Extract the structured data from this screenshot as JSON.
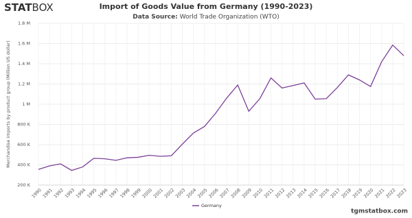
{
  "logo": {
    "bold": "STAT",
    "light": "BOX"
  },
  "footer": "tgmstatbox.com",
  "chart_data": {
    "type": "line",
    "title": "Import of Goods Value from Germany (1990-2023)",
    "subtitle_label": "Data Source:",
    "subtitle": "World Trade Organization (WTO)",
    "y_label": "Merchandise imports by product group (Million US dollar)",
    "x": [
      1990,
      1991,
      1992,
      1993,
      1994,
      1995,
      1996,
      1997,
      1998,
      1999,
      2000,
      2001,
      2002,
      2003,
      2004,
      2005,
      2006,
      2007,
      2008,
      2009,
      2010,
      2011,
      2012,
      2013,
      2014,
      2015,
      2016,
      2017,
      2018,
      2019,
      2020,
      2021,
      2022,
      2023
    ],
    "xlim": [
      1990,
      2023
    ],
    "xticks": [
      1990,
      1991,
      1992,
      1993,
      1994,
      1995,
      1996,
      1997,
      1998,
      1999,
      2000,
      2001,
      2002,
      2003,
      2004,
      2005,
      2006,
      2007,
      2008,
      2009,
      2010,
      2011,
      2012,
      2013,
      2014,
      2015,
      2016,
      2017,
      2018,
      2019,
      2020,
      2021,
      2022,
      2023
    ],
    "ylim": [
      200000,
      1800000
    ],
    "yticks": [
      {
        "value": 200000,
        "label": "200 K"
      },
      {
        "value": 400000,
        "label": "400 K"
      },
      {
        "value": 600000,
        "label": "600 K"
      },
      {
        "value": 800000,
        "label": "800 K"
      },
      {
        "value": 1000000,
        "label": "1 M"
      },
      {
        "value": 1200000,
        "label": "1.2 M"
      },
      {
        "value": 1400000,
        "label": "1.4 M"
      },
      {
        "value": 1600000,
        "label": "1.6 M"
      },
      {
        "value": 1800000,
        "label": "1.8 M"
      }
    ],
    "grid": true,
    "legend": "bottom",
    "series": [
      {
        "name": "Germany",
        "color": "#7b3f98",
        "values": [
          355000,
          390000,
          410000,
          345000,
          380000,
          465000,
          460000,
          445000,
          470000,
          475000,
          495000,
          485000,
          490000,
          605000,
          715000,
          780000,
          910000,
          1060000,
          1190000,
          930000,
          1055000,
          1260000,
          1160000,
          1185000,
          1210000,
          1050000,
          1055000,
          1165000,
          1290000,
          1240000,
          1175000,
          1420000,
          1585000,
          1480000
        ]
      }
    ]
  }
}
